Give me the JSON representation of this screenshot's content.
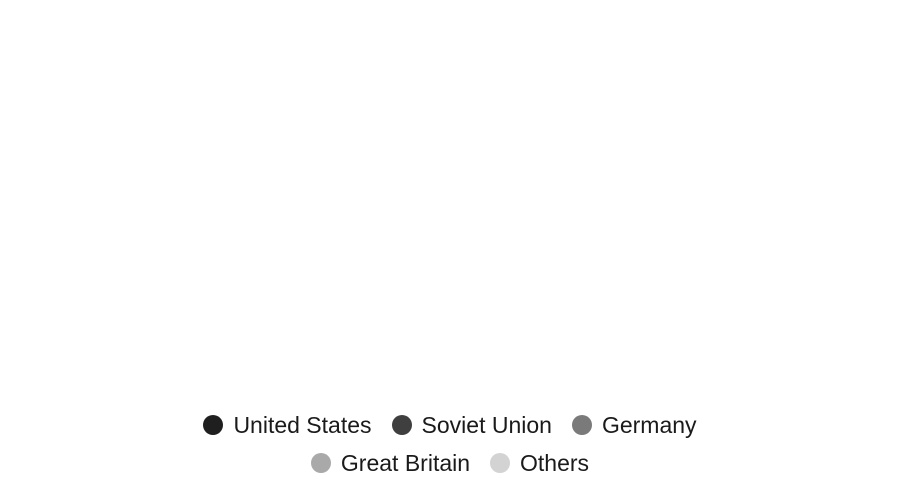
{
  "chart_data": {
    "type": "pie",
    "title": "",
    "legend_position": "bottom-center",
    "legend": [
      {
        "label": "United States",
        "color": "#1f1f1f"
      },
      {
        "label": "Soviet Union",
        "color": "#3f3f3f"
      },
      {
        "label": "Germany",
        "color": "#7a7a7a"
      },
      {
        "label": "Great Britain",
        "color": "#a9a9a9"
      },
      {
        "label": "Others",
        "color": "#d3d3d3"
      }
    ]
  }
}
